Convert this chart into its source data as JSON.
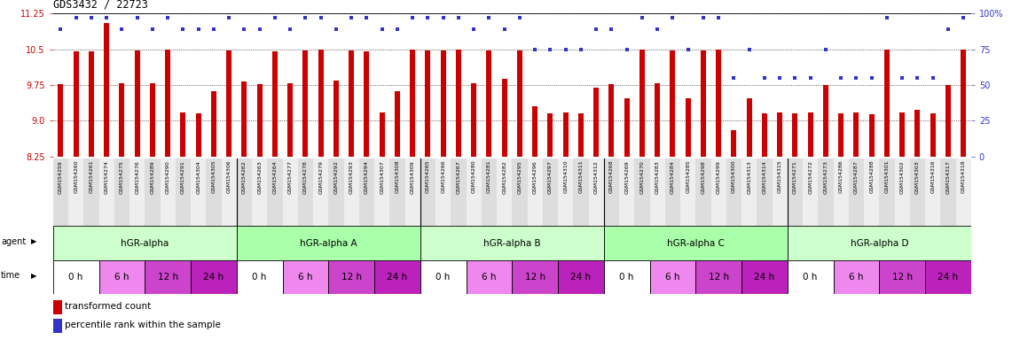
{
  "title": "GDS3432 / 22723",
  "samples": [
    "GSM154259",
    "GSM154260",
    "GSM154261",
    "GSM154274",
    "GSM154275",
    "GSM154276",
    "GSM154289",
    "GSM154290",
    "GSM154291",
    "GSM154304",
    "GSM154305",
    "GSM154306",
    "GSM154262",
    "GSM154263",
    "GSM154264",
    "GSM154277",
    "GSM154278",
    "GSM154279",
    "GSM154292",
    "GSM154293",
    "GSM154294",
    "GSM154307",
    "GSM154308",
    "GSM154309",
    "GSM154265",
    "GSM154266",
    "GSM154267",
    "GSM154280",
    "GSM154281",
    "GSM154282",
    "GSM154295",
    "GSM154296",
    "GSM154297",
    "GSM154310",
    "GSM154311",
    "GSM154312",
    "GSM154268",
    "GSM154269",
    "GSM154270",
    "GSM154283",
    "GSM154284",
    "GSM154285",
    "GSM154298",
    "GSM154299",
    "GSM154300",
    "GSM154313",
    "GSM154314",
    "GSM154315",
    "GSM154271",
    "GSM154272",
    "GSM154273",
    "GSM154286",
    "GSM154287",
    "GSM154288",
    "GSM154301",
    "GSM154302",
    "GSM154303",
    "GSM154316",
    "GSM154317",
    "GSM154318"
  ],
  "bar_values": [
    9.76,
    10.46,
    10.46,
    11.06,
    9.78,
    10.47,
    9.78,
    10.5,
    9.18,
    9.15,
    9.62,
    10.48,
    9.82,
    9.76,
    10.46,
    9.78,
    10.47,
    10.49,
    9.84,
    10.47,
    10.46,
    9.18,
    9.62,
    10.49,
    10.48,
    10.47,
    10.49,
    9.78,
    10.47,
    9.88,
    10.48,
    9.3,
    9.16,
    9.18,
    9.16,
    9.7,
    9.76,
    9.47,
    10.49,
    9.78,
    10.48,
    9.47,
    10.47,
    10.49,
    8.8,
    9.47,
    9.16,
    9.17,
    9.15,
    9.18,
    9.75,
    9.15,
    9.18,
    9.14,
    10.5,
    9.18,
    9.22,
    9.16,
    9.75,
    10.5
  ],
  "dot_values": [
    89,
    97,
    97,
    97,
    89,
    97,
    89,
    97,
    89,
    89,
    89,
    97,
    89,
    89,
    97,
    89,
    97,
    97,
    89,
    97,
    97,
    89,
    89,
    97,
    97,
    97,
    97,
    89,
    97,
    89,
    97,
    75,
    75,
    75,
    75,
    89,
    89,
    75,
    97,
    89,
    97,
    75,
    97,
    97,
    55,
    75,
    55,
    55,
    55,
    55,
    75,
    55,
    55,
    55,
    97,
    55,
    55,
    55,
    89,
    97
  ],
  "ylim_left": [
    8.25,
    11.25
  ],
  "ylim_right": [
    0,
    100
  ],
  "yticks_left": [
    8.25,
    9.0,
    9.75,
    10.5,
    11.25
  ],
  "yticks_right": [
    0,
    25,
    50,
    75,
    100
  ],
  "bar_color": "#cc0000",
  "dot_color": "#3333cc",
  "agents": [
    {
      "label": "hGR-alpha",
      "start": 0,
      "end": 12,
      "color": "#ccffcc"
    },
    {
      "label": "hGR-alpha A",
      "start": 12,
      "end": 24,
      "color": "#aaffaa"
    },
    {
      "label": "hGR-alpha B",
      "start": 24,
      "end": 36,
      "color": "#ccffcc"
    },
    {
      "label": "hGR-alpha C",
      "start": 36,
      "end": 48,
      "color": "#aaffaa"
    },
    {
      "label": "hGR-alpha D",
      "start": 48,
      "end": 60,
      "color": "#ccffcc"
    }
  ],
  "times": [
    {
      "label": "0 h",
      "start": 0,
      "end": 3,
      "color": "#ffffff"
    },
    {
      "label": "6 h",
      "start": 3,
      "end": 6,
      "color": "#ee88ee"
    },
    {
      "label": "12 h",
      "start": 6,
      "end": 9,
      "color": "#cc44cc"
    },
    {
      "label": "24 h",
      "start": 9,
      "end": 12,
      "color": "#bb22bb"
    },
    {
      "label": "0 h",
      "start": 12,
      "end": 15,
      "color": "#ffffff"
    },
    {
      "label": "6 h",
      "start": 15,
      "end": 18,
      "color": "#ee88ee"
    },
    {
      "label": "12 h",
      "start": 18,
      "end": 21,
      "color": "#cc44cc"
    },
    {
      "label": "24 h",
      "start": 21,
      "end": 24,
      "color": "#bb22bb"
    },
    {
      "label": "0 h",
      "start": 24,
      "end": 27,
      "color": "#ffffff"
    },
    {
      "label": "6 h",
      "start": 27,
      "end": 30,
      "color": "#ee88ee"
    },
    {
      "label": "12 h",
      "start": 30,
      "end": 33,
      "color": "#cc44cc"
    },
    {
      "label": "24 h",
      "start": 33,
      "end": 36,
      "color": "#bb22bb"
    },
    {
      "label": "0 h",
      "start": 36,
      "end": 39,
      "color": "#ffffff"
    },
    {
      "label": "6 h",
      "start": 39,
      "end": 42,
      "color": "#ee88ee"
    },
    {
      "label": "12 h",
      "start": 42,
      "end": 45,
      "color": "#cc44cc"
    },
    {
      "label": "24 h",
      "start": 45,
      "end": 48,
      "color": "#bb22bb"
    },
    {
      "label": "0 h",
      "start": 48,
      "end": 51,
      "color": "#ffffff"
    },
    {
      "label": "6 h",
      "start": 51,
      "end": 54,
      "color": "#ee88ee"
    },
    {
      "label": "12 h",
      "start": 54,
      "end": 57,
      "color": "#cc44cc"
    },
    {
      "label": "24 h",
      "start": 57,
      "end": 60,
      "color": "#bb22bb"
    }
  ],
  "legend_bar_color": "#cc0000",
  "legend_dot_color": "#3333cc",
  "legend_bar_label": "transformed count",
  "legend_dot_label": "percentile rank within the sample",
  "background_color": "#ffffff",
  "plot_bg_color": "#ffffff",
  "axis_color_left": "#cc0000",
  "axis_color_right": "#3333cc",
  "label_bg_even": "#dddddd",
  "label_bg_odd": "#eeeeee"
}
